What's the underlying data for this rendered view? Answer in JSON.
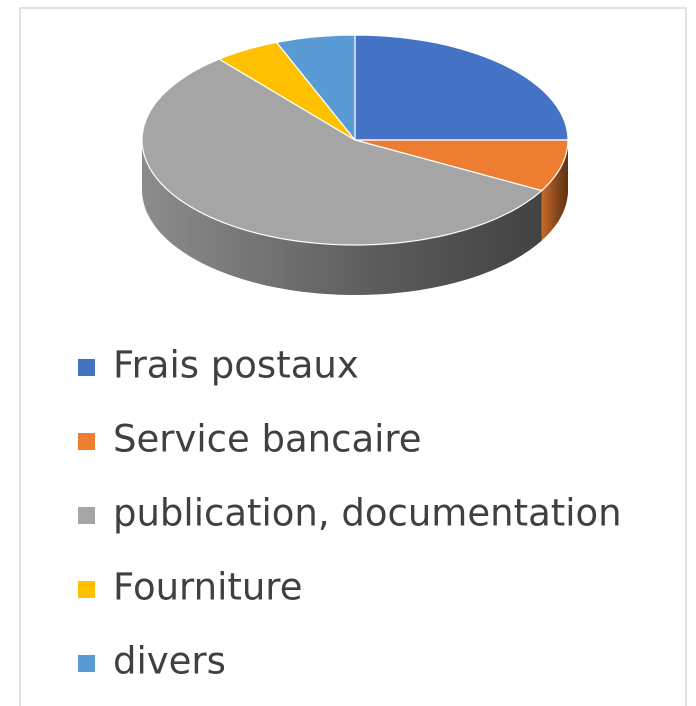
{
  "chart_data": {
    "type": "pie",
    "categories": [
      "Frais postaux",
      "Service bancaire",
      "publication, documentation",
      "Fourniture",
      "divers"
    ],
    "values": [
      25,
      8,
      56,
      5,
      6
    ],
    "colors": [
      "#4472c4",
      "#ed7d31",
      "#a5a5a5",
      "#ffc000",
      "#5b9bd5"
    ],
    "legend": "bottom",
    "style": "3d"
  }
}
